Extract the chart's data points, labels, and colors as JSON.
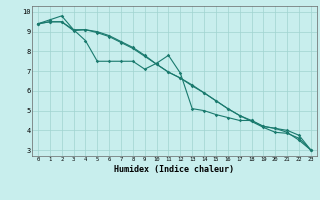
{
  "xlabel": "Humidex (Indice chaleur)",
  "xlim": [
    -0.5,
    23.5
  ],
  "ylim": [
    2.7,
    10.3
  ],
  "yticks": [
    3,
    4,
    5,
    6,
    7,
    8,
    9,
    10
  ],
  "xticks": [
    0,
    1,
    2,
    3,
    4,
    5,
    6,
    7,
    8,
    9,
    10,
    11,
    12,
    13,
    14,
    15,
    16,
    17,
    18,
    19,
    20,
    21,
    22,
    23
  ],
  "background_color": "#c8eeed",
  "grid_color": "#a0d4d0",
  "line_color": "#1a7a6e",
  "series": [
    [
      9.4,
      9.6,
      9.8,
      9.1,
      8.55,
      7.5,
      7.5,
      7.5,
      7.5,
      7.1,
      7.4,
      7.8,
      6.9,
      5.1,
      5.0,
      4.8,
      4.65,
      4.5,
      4.5,
      4.2,
      4.1,
      3.9,
      3.5,
      3.0
    ],
    [
      9.4,
      9.5,
      9.5,
      9.1,
      9.1,
      9.0,
      8.8,
      8.5,
      8.2,
      7.8,
      7.35,
      6.95,
      6.65,
      6.25,
      5.9,
      5.5,
      5.1,
      4.75,
      4.45,
      4.15,
      3.9,
      3.85,
      3.6,
      3.0
    ],
    [
      9.4,
      9.5,
      9.5,
      9.05,
      9.1,
      8.95,
      8.75,
      8.45,
      8.15,
      7.75,
      7.35,
      6.95,
      6.65,
      6.3,
      5.9,
      5.5,
      5.1,
      4.75,
      4.5,
      4.2,
      4.1,
      4.0,
      3.75,
      3.0
    ]
  ]
}
